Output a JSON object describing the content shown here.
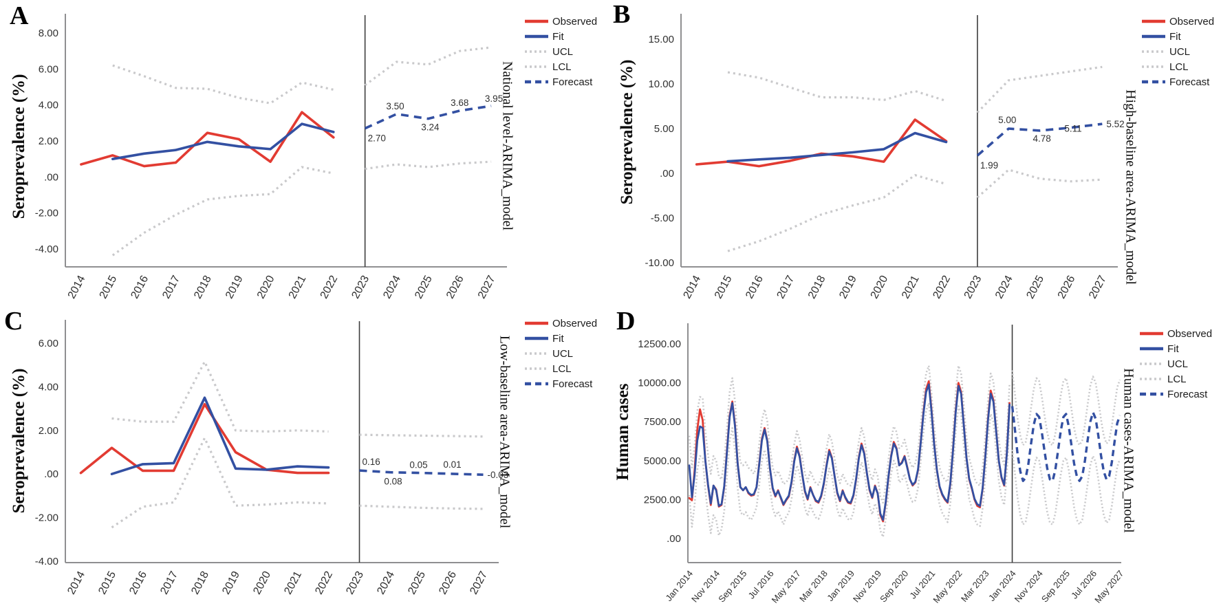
{
  "figure_colors": {
    "observed": "#e23b32",
    "fit": "#3350a2",
    "interval": "#c9c9cb",
    "forecast": "#3350a2",
    "separator": "#3c3c3c",
    "axis": "#8f8f91",
    "point_label_text": "#20242e"
  },
  "legend_labels": [
    "Observed",
    "Fit",
    "UCL",
    "LCL",
    "Forecast"
  ],
  "chart_data": [
    {
      "type": "line",
      "panel_label": "A",
      "side_label": "National level-ARIMA_model",
      "ylabel": "Seroprevalence (%)",
      "x_tick_labels": [
        "2014",
        "2015",
        "2016",
        "2017",
        "2018",
        "2019",
        "2020",
        "2021",
        "2022",
        "2023",
        "2024",
        "2025",
        "2026",
        "2027"
      ],
      "separator_at": "2023",
      "legend_position": "right-top",
      "grid": false,
      "y_ticks": {
        "values": [
          8,
          6,
          4,
          2,
          0,
          -2,
          -4
        ],
        "labels": [
          "8.00",
          "6.00",
          "4.00",
          "2.00",
          ".00",
          "-2.00",
          "-4.00"
        ]
      },
      "ylim": [
        -5.2,
        9.1
      ],
      "series": {
        "observed": {
          "x_start": 0,
          "values": [
            0.7,
            1.2,
            0.6,
            0.8,
            2.45,
            2.1,
            0.85,
            3.6,
            2.2
          ]
        },
        "fit": {
          "x_start": 1,
          "values": [
            1.0,
            1.3,
            1.5,
            1.95,
            1.7,
            1.55,
            2.95,
            2.5
          ]
        },
        "ucl": {
          "history_x_start": 1,
          "history": [
            6.2,
            5.6,
            4.95,
            4.9,
            4.4,
            4.1,
            5.25,
            4.85
          ],
          "forecast_x_start": 9,
          "forecast": [
            5.1,
            6.4,
            6.25,
            7.0,
            7.2
          ]
        },
        "lcl": {
          "history_x_start": 1,
          "history": [
            -4.35,
            -3.1,
            -2.1,
            -1.25,
            -1.05,
            -0.95,
            0.55,
            0.2
          ],
          "forecast_x_start": 9,
          "forecast": [
            0.45,
            0.7,
            0.55,
            0.75,
            0.85
          ]
        },
        "forecast": {
          "x_start": 9,
          "values": [
            2.7,
            3.5,
            3.24,
            3.68,
            3.95
          ],
          "point_labels": [
            "2.70",
            "3.50",
            "3.24",
            "3.68",
            "3.95"
          ]
        }
      }
    },
    {
      "type": "line",
      "panel_label": "B",
      "side_label": "High-baseline area-ARIMA_model",
      "ylabel": "Seroprevalence (%)",
      "x_tick_labels": [
        "2014",
        "2015",
        "2016",
        "2017",
        "2018",
        "2019",
        "2020",
        "2021",
        "2022",
        "2023",
        "2024",
        "2025",
        "2026",
        "2027"
      ],
      "separator_at": "2023",
      "legend_position": "right-top",
      "grid": false,
      "y_ticks": {
        "values": [
          15,
          10,
          5,
          0,
          -5,
          -10
        ],
        "labels": [
          "15.00",
          "10.00",
          "5.00",
          ".00",
          "-5.00",
          "-10.00"
        ]
      },
      "ylim": [
        -10.6,
        17.0
      ],
      "series": {
        "observed": {
          "x_start": 0,
          "values": [
            1.0,
            1.3,
            0.8,
            1.4,
            2.2,
            1.9,
            1.3,
            6.0,
            3.6
          ]
        },
        "fit": {
          "x_start": 1,
          "values": [
            1.35,
            1.55,
            1.75,
            2.05,
            2.35,
            2.7,
            4.5,
            3.5
          ]
        },
        "ucl": {
          "history_x_start": 1,
          "history": [
            11.3,
            10.7,
            9.6,
            8.5,
            8.5,
            8.2,
            9.2,
            8.1
          ],
          "forecast_x_start": 9,
          "forecast": [
            6.8,
            10.4,
            10.9,
            11.4,
            11.9
          ]
        },
        "lcl": {
          "history_x_start": 1,
          "history": [
            -8.7,
            -7.6,
            -6.2,
            -4.6,
            -3.6,
            -2.7,
            -0.2,
            -1.2
          ],
          "forecast_x_start": 9,
          "forecast": [
            -2.7,
            0.4,
            -0.6,
            -0.9,
            -0.7
          ]
        },
        "forecast": {
          "x_start": 9,
          "values": [
            1.99,
            5.0,
            4.78,
            5.11,
            5.52
          ],
          "point_labels": [
            "1.99",
            "5.00",
            "4.78",
            "5.11",
            "5.52"
          ]
        }
      }
    },
    {
      "type": "line",
      "panel_label": "C",
      "side_label": "Low-baseline area-ARIMA_model",
      "ylabel": "Seroprevalence (%)",
      "x_tick_labels": [
        "2014",
        "2015",
        "2016",
        "2017",
        "2018",
        "2019",
        "2020",
        "2021",
        "2022",
        "2023",
        "2024",
        "2025",
        "2026",
        "2027"
      ],
      "separator_at": "2023",
      "legend_position": "right-top",
      "grid": false,
      "y_ticks": {
        "values": [
          6,
          4,
          2,
          0,
          -2,
          -4
        ],
        "labels": [
          "6.00",
          "4.00",
          "2.00",
          ".00",
          "-2.00",
          "-4.00"
        ]
      },
      "ylim": [
        -4.6,
        7.0
      ],
      "series": {
        "observed": {
          "x_start": 0,
          "values": [
            0.05,
            1.2,
            0.15,
            0.15,
            3.2,
            1.0,
            0.2,
            0.05,
            0.05
          ]
        },
        "fit": {
          "x_start": 1,
          "values": [
            0.0,
            0.45,
            0.5,
            3.5,
            0.25,
            0.2,
            0.35,
            0.3
          ]
        },
        "ucl": {
          "history_x_start": 1,
          "history": [
            2.55,
            2.4,
            2.4,
            5.15,
            2.0,
            1.95,
            2.0,
            1.95
          ],
          "forecast_x_start": 9,
          "forecast": [
            1.8,
            1.78,
            1.76,
            1.74,
            1.72
          ]
        },
        "lcl": {
          "history_x_start": 1,
          "history": [
            -2.45,
            -1.5,
            -1.3,
            1.65,
            -1.45,
            -1.4,
            -1.3,
            -1.35
          ],
          "forecast_x_start": 9,
          "forecast": [
            -1.45,
            -1.5,
            -1.55,
            -1.58,
            -1.6
          ]
        },
        "forecast": {
          "x_start": 9,
          "values": [
            0.16,
            0.08,
            0.05,
            0.01,
            -0.03
          ],
          "point_labels": [
            "0.16",
            "0.08",
            "0.05",
            "0.01",
            "-0.03"
          ]
        }
      }
    },
    {
      "type": "line",
      "panel_label": "D",
      "side_label": "Human cases-ARIMA_model",
      "ylabel": "Human cases",
      "x_count": 161,
      "x_tick_labels": [
        "Jan 2014",
        "Nov 2014",
        "Sep 2015",
        "Jul 2016",
        "May 2017",
        "Mar 2018",
        "Jan 2019",
        "Nov 2019",
        "Sep 2020",
        "Jul 2021",
        "May 2022",
        "Mar 2023",
        "Jan 2024",
        "Nov 2024",
        "Sep 2025",
        "Jul 2026",
        "May 2027"
      ],
      "x_tick_positions": [
        0,
        10,
        20,
        30,
        40,
        50,
        60,
        70,
        80,
        90,
        100,
        110,
        120,
        130,
        140,
        150,
        160
      ],
      "separator_at": "Jan 2024",
      "separator_index": 120,
      "legend_position": "right-top",
      "grid": false,
      "y_ticks": {
        "values": [
          12500,
          10000,
          7500,
          5000,
          2500,
          0
        ],
        "labels": [
          "12500.00",
          "10000.00",
          "7500.00",
          "5000.00",
          "2500.00",
          ".00"
        ]
      },
      "ylim": [
        -1600,
        13700
      ],
      "series": {
        "observed": {
          "x_start": 0,
          "values": [
            2600,
            2450,
            4400,
            7000,
            8300,
            7600,
            5000,
            3400,
            2150,
            3400,
            3150,
            2050,
            2150,
            3300,
            5600,
            7900,
            8800,
            7300,
            4800,
            3300,
            3100,
            3300,
            2900,
            2750,
            2800,
            3300,
            4800,
            6400,
            7100,
            6300,
            4500,
            3200,
            2700,
            3100,
            2600,
            2150,
            2450,
            2700,
            3600,
            5000,
            5900,
            5300,
            4100,
            3000,
            2500,
            3300,
            2800,
            2400,
            2300,
            2700,
            3500,
            4700,
            5700,
            5200,
            4000,
            2900,
            2400,
            3100,
            2600,
            2300,
            2250,
            2750,
            3800,
            5200,
            6100,
            5500,
            4200,
            3100,
            2600,
            3400,
            2900,
            1500,
            1100,
            2300,
            3900,
            5300,
            6200,
            5800,
            4700,
            4900,
            5300,
            4600,
            3800,
            3400,
            3600,
            4400,
            6200,
            8100,
            9600,
            10100,
            8300,
            6100,
            4400,
            3300,
            2800,
            2500,
            2300,
            3500,
            5700,
            8200,
            10000,
            9400,
            7300,
            5200,
            3800,
            3200,
            2500,
            2100,
            2000,
            3200,
            5300,
            7700,
            9500,
            8900,
            7000,
            5000,
            3900,
            3400,
            5500,
            8700
          ]
        },
        "fit": {
          "x_start": 0,
          "values": [
            4700,
            2650,
            4100,
            6300,
            7200,
            7100,
            5000,
            3450,
            2250,
            3400,
            3100,
            2100,
            2200,
            3350,
            5500,
            7800,
            8700,
            7200,
            4800,
            3300,
            3100,
            3300,
            2950,
            2800,
            2850,
            3300,
            4750,
            6300,
            7000,
            6250,
            4500,
            3250,
            2750,
            3050,
            2650,
            2200,
            2500,
            2750,
            3650,
            4950,
            5800,
            5250,
            4100,
            3050,
            2550,
            3250,
            2800,
            2450,
            2350,
            2750,
            3550,
            4650,
            5600,
            5150,
            4000,
            2950,
            2450,
            3050,
            2650,
            2350,
            2300,
            2800,
            3850,
            5150,
            6000,
            5450,
            4200,
            3150,
            2650,
            3350,
            2900,
            1600,
            1200,
            2350,
            3950,
            5250,
            6100,
            5750,
            4700,
            4850,
            5250,
            4550,
            3800,
            3450,
            3650,
            4450,
            6150,
            8000,
            9400,
            9900,
            8200,
            6050,
            4400,
            3350,
            2850,
            2550,
            2350,
            3550,
            5650,
            8100,
            9800,
            9300,
            7250,
            5200,
            3850,
            3250,
            2550,
            2200,
            2100,
            3250,
            5250,
            7600,
            9300,
            8800,
            6950,
            5000,
            3950,
            3450,
            5450,
            8600
          ]
        },
        "band": {
          "history_halfwidths_by_year": [
            1900,
            1600,
            1300,
            1100,
            1100,
            1100,
            1100,
            1200,
            1300,
            1300
          ]
        },
        "ucl": {
          "forecast_x_start": 120,
          "forecast": [
            10800,
            9300,
            7700,
            6600,
            6000,
            6200,
            7100,
            8400,
            9600,
            10300,
            10100,
            9100,
            7900,
            6800,
            6100,
            6000,
            6700,
            7900,
            9200,
            10100,
            10300,
            9500,
            8300,
            7100,
            6300,
            6000,
            6300,
            7300,
            8600,
            9800,
            10400,
            10000,
            8900,
            7600,
            6600,
            6100,
            6300,
            7200,
            8500,
            9700,
            10200
          ]
        },
        "lcl": {
          "forecast_x_start": 120,
          "forecast": [
            5700,
            4200,
            2600,
            1500,
            900,
            1100,
            2000,
            3300,
            4500,
            5200,
            5000,
            4000,
            2800,
            1700,
            1000,
            900,
            1600,
            2800,
            4100,
            5000,
            5200,
            4400,
            3200,
            2000,
            1200,
            900,
            1200,
            2200,
            3500,
            4700,
            5300,
            4900,
            3800,
            2500,
            1500,
            1000,
            1200,
            2100,
            3400,
            4600,
            5100
          ]
        },
        "forecast": {
          "x_start": 120,
          "values": [
            8500,
            7000,
            5400,
            4300,
            3700,
            3900,
            4800,
            6100,
            7300,
            8000,
            7800,
            6800,
            5600,
            4500,
            3800,
            3700,
            4400,
            5600,
            6900,
            7800,
            8000,
            7200,
            6000,
            4800,
            4000,
            3700,
            4000,
            5000,
            6300,
            7500,
            8100,
            7700,
            6600,
            5300,
            4300,
            3800,
            4000,
            4900,
            6200,
            7400,
            7900
          ],
          "point_labels": []
        }
      }
    }
  ]
}
